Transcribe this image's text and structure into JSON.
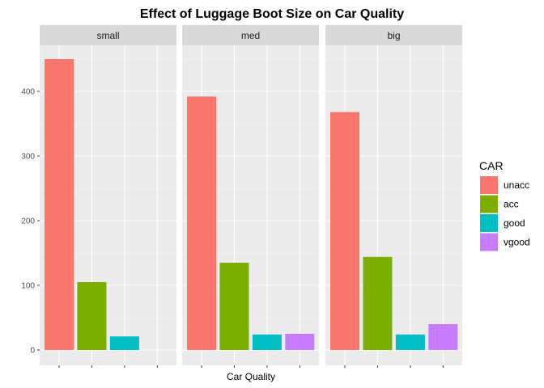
{
  "chart_data": {
    "type": "bar",
    "title": "Effect of Luggage Boot Size on Car Quality",
    "xlabel": "Car Quality",
    "ylabel": "",
    "ylim": [
      0,
      480
    ],
    "yticks": [
      0,
      100,
      200,
      300,
      400
    ],
    "facets": [
      "small",
      "med",
      "big"
    ],
    "categories": [
      "unacc",
      "acc",
      "good",
      "vgood"
    ],
    "series": [
      {
        "facet": "small",
        "values": [
          450,
          105,
          21,
          0
        ]
      },
      {
        "facet": "med",
        "values": [
          392,
          135,
          24,
          25
        ]
      },
      {
        "facet": "big",
        "values": [
          368,
          144,
          24,
          40
        ]
      }
    ],
    "colors": {
      "unacc": "#F8766D",
      "acc": "#7CAE00",
      "good": "#00BFC4",
      "vgood": "#C77CFF"
    },
    "legend": {
      "title": "CAR",
      "items": [
        "unacc",
        "acc",
        "good",
        "vgood"
      ],
      "placement": "right"
    },
    "panel_bg": "#EBEBEB",
    "strip_bg": "#D9D9D9",
    "grid": true
  }
}
